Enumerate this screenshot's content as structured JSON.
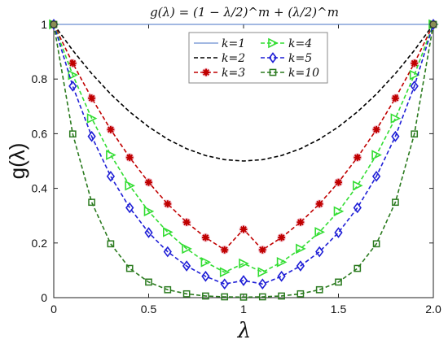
{
  "chart_data": {
    "type": "line",
    "title": "g(λ) = (1 − λ/2)^m + (λ/2)^m",
    "xlabel": "λ",
    "ylabel": "g(λ)",
    "xlim": [
      0,
      2
    ],
    "ylim": [
      0,
      1
    ],
    "xticks": [
      "0",
      "0.5",
      "1",
      "1.5",
      "2.0"
    ],
    "yticks": [
      "0",
      "0.2",
      "0.4",
      "0.6",
      "0.8",
      "1"
    ],
    "grid": false,
    "legend_position": "top-center",
    "x": [
      0,
      0.1,
      0.2,
      0.3,
      0.4,
      0.5,
      0.6,
      0.7,
      0.8,
      0.9,
      1.0,
      1.1,
      1.2,
      1.3,
      1.4,
      1.5,
      1.6,
      1.7,
      1.8,
      1.9,
      2.0
    ],
    "series": [
      {
        "name": "k=1",
        "color": "#4472c4",
        "line_style": "solid",
        "marker": "none",
        "values": [
          1,
          1,
          1,
          1,
          1,
          1,
          1,
          1,
          1,
          1,
          1,
          1,
          1,
          1,
          1,
          1,
          1,
          1,
          1,
          1,
          1
        ]
      },
      {
        "name": "k=2",
        "color": "#000000",
        "line_style": "dashed",
        "marker": "none",
        "values": [
          1,
          0.905,
          0.82,
          0.745,
          0.68,
          0.625,
          0.58,
          0.545,
          0.52,
          0.505,
          0.5,
          0.505,
          0.52,
          0.545,
          0.58,
          0.625,
          0.68,
          0.745,
          0.82,
          0.905,
          1
        ]
      },
      {
        "name": "k=3",
        "color": "#c00000",
        "line_style": "dashed",
        "marker": "star",
        "values": [
          1,
          0.858,
          0.73,
          0.615,
          0.513,
          0.422,
          0.343,
          0.276,
          0.22,
          0.175,
          0.25,
          0.175,
          0.22,
          0.276,
          0.343,
          0.422,
          0.513,
          0.615,
          0.73,
          0.858,
          1
        ]
      },
      {
        "name": "k=4",
        "color": "#33dd33",
        "line_style": "dashed",
        "marker": "triangle-right",
        "values": [
          1,
          0.815,
          0.656,
          0.522,
          0.41,
          0.316,
          0.24,
          0.179,
          0.13,
          0.093,
          0.125,
          0.093,
          0.13,
          0.179,
          0.24,
          0.316,
          0.41,
          0.522,
          0.656,
          0.815,
          1
        ]
      },
      {
        "name": "k=5",
        "color": "#1f1fd6",
        "line_style": "dashed",
        "marker": "diamond",
        "values": [
          1,
          0.774,
          0.59,
          0.444,
          0.329,
          0.238,
          0.168,
          0.116,
          0.078,
          0.05,
          0.0625,
          0.05,
          0.078,
          0.116,
          0.168,
          0.238,
          0.329,
          0.444,
          0.59,
          0.774,
          1
        ]
      },
      {
        "name": "k=10",
        "color": "#2a7a1e",
        "line_style": "dashed",
        "marker": "square",
        "values": [
          1,
          0.599,
          0.349,
          0.197,
          0.107,
          0.057,
          0.029,
          0.014,
          0.006,
          0.003,
          0.002,
          0.003,
          0.006,
          0.014,
          0.029,
          0.057,
          0.107,
          0.197,
          0.349,
          0.599,
          1
        ]
      }
    ]
  }
}
